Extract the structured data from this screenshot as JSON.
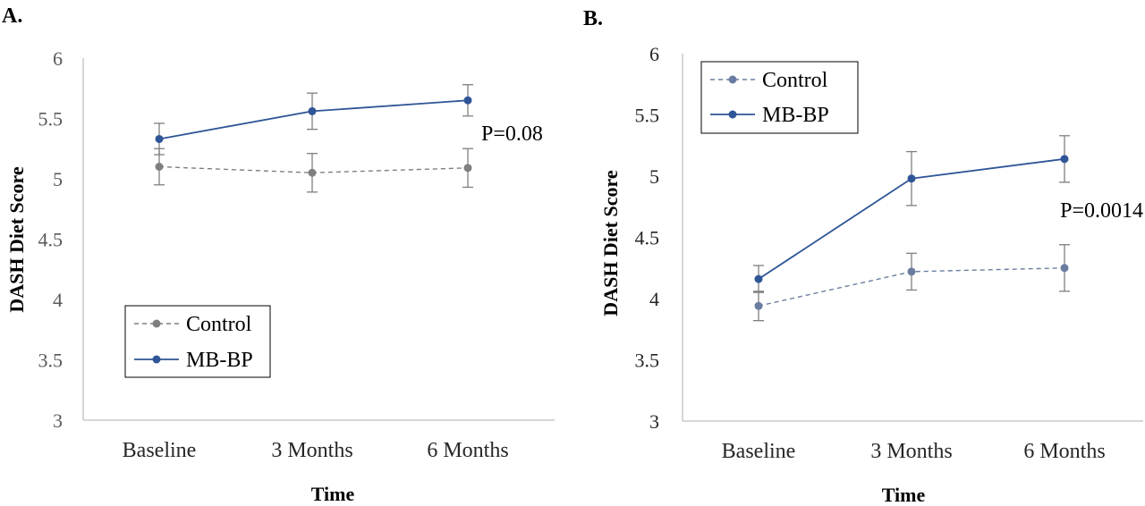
{
  "chart_data": [
    {
      "panel": "A.",
      "type": "line",
      "categories": [
        "Baseline",
        "3 Months",
        "6 Months"
      ],
      "series": [
        {
          "name": "Control",
          "values": [
            5.1,
            5.05,
            5.09
          ],
          "error": [
            0.15,
            0.16,
            0.16
          ],
          "color": "#7f7f7f",
          "dash": true
        },
        {
          "name": "MB-BP",
          "values": [
            5.33,
            5.56,
            5.65
          ],
          "error": [
            0.13,
            0.15,
            0.13
          ],
          "color": "#2f5597",
          "dash": false
        }
      ],
      "xlabel": "Time",
      "ylabel": "DASH Diet Score",
      "ylim": [
        3,
        6
      ],
      "yticks": [
        "3",
        "3.5",
        "4",
        "4.5",
        "5",
        "5.5",
        "6"
      ],
      "annotation": "P=0.08",
      "legend_position": "bottom-left",
      "grid": false
    },
    {
      "panel": "B.",
      "type": "line",
      "categories": [
        "Baseline",
        "3 Months",
        "6 Months"
      ],
      "series": [
        {
          "name": "Control",
          "values": [
            3.94,
            4.22,
            4.25
          ],
          "error": [
            0.12,
            0.15,
            0.19
          ],
          "color": "#6a7da0",
          "dash": true
        },
        {
          "name": "MB-BP",
          "values": [
            4.16,
            4.98,
            5.14
          ],
          "error": [
            0.11,
            0.22,
            0.19
          ],
          "color": "#2f5597",
          "dash": false
        }
      ],
      "xlabel": "Time",
      "ylabel": "DASH Diet Score",
      "ylim": [
        3,
        6
      ],
      "yticks": [
        "3",
        "3.5",
        "4",
        "4.5",
        "5",
        "5.5",
        "6"
      ],
      "annotation": "P=0.0014",
      "legend_position": "top-left",
      "grid": false
    }
  ]
}
